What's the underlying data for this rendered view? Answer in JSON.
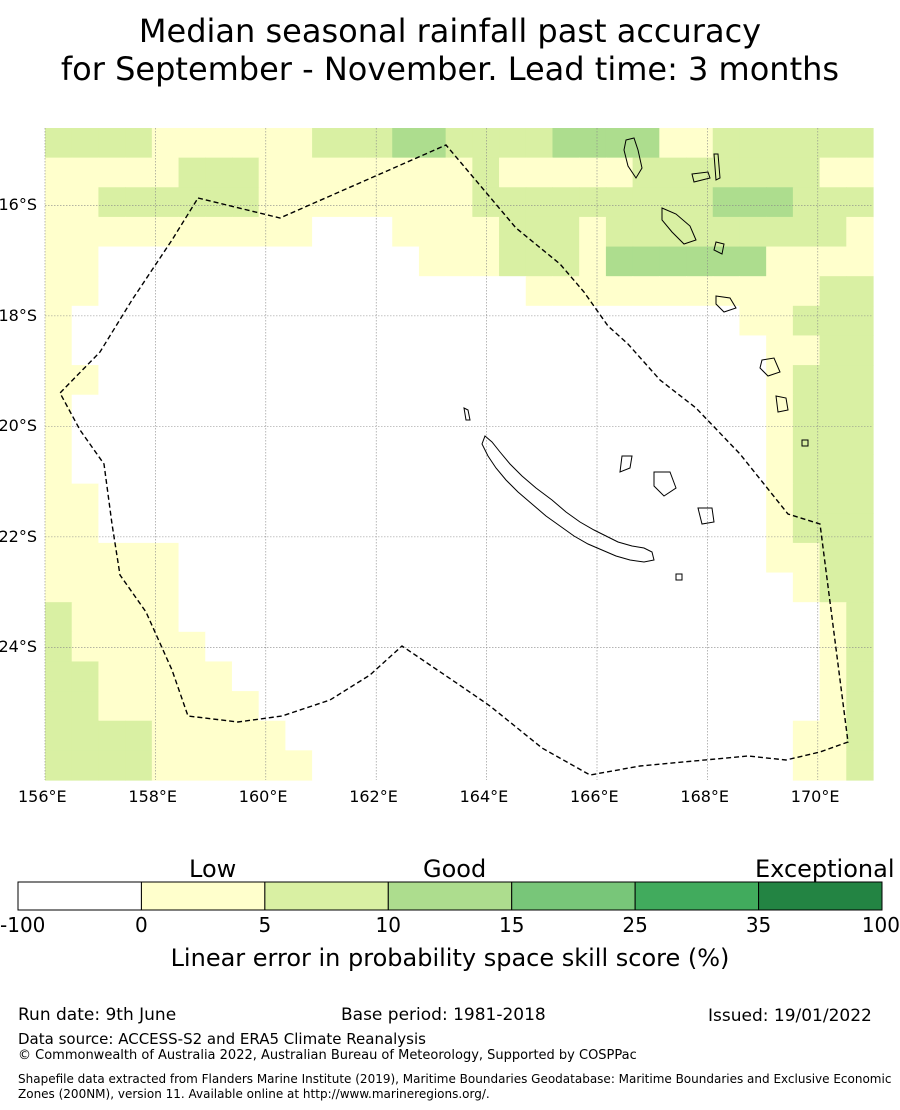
{
  "title_line1": "Median seasonal rainfall past accuracy",
  "title_line2": "for September - November. Lead time: 3 months",
  "map": {
    "lon_min": 156,
    "lon_max": 171,
    "lat_min": -26.4,
    "lat_max": -14.6,
    "lon_ticks": [
      "156°E",
      "158°E",
      "160°E",
      "162°E",
      "164°E",
      "166°E",
      "168°E",
      "170°E"
    ],
    "lat_ticks": [
      "16°S",
      "18°S",
      "20°S",
      "22°S",
      "24°S"
    ],
    "grid": [
      "2222111111222332222333311222222",
      "1111122211111111211111222222211",
      "1122222211111111222222222333222",
      "1111111111000111122212222222221",
      "1100000000000011122213333331111",
      "1100000000000000001111111111122",
      "1000000000000000000000000011222",
      "1000000000000000000000000001122",
      "1100000000000000000000000001222",
      "1000000000000000000000000001222",
      "1000000000000000000000000001222",
      "1000000000000000000000000001222",
      "1100000000000000000000000001222",
      "1100000000000000000000000001222",
      "1111100000000000000000000001122",
      "1111100000000000000000000000122",
      "2111100000000000000000000000012",
      "2111110000000000000000000000012",
      "2211111000000000000000000000012",
      "2211111100000000000000000000012",
      "2222111110000000000000000000112",
      "2222111111000000000000000000112"
    ]
  },
  "colorbar": {
    "categories": [
      "Low",
      "Good",
      "Exceptional"
    ],
    "colors": [
      "#ffffff",
      "#ffffcc",
      "#d9f0a3",
      "#addd8e",
      "#78c679",
      "#41ab5d",
      "#238443"
    ],
    "ticks": [
      "-100",
      "0",
      "5",
      "10",
      "15",
      "25",
      "35",
      "100"
    ],
    "title": "Linear error in probability space skill score (%)"
  },
  "footer": {
    "run_date": "Run date: 9th June",
    "base_period": "Base period: 1981-2018",
    "issued": "Issued: 19/01/2022",
    "data_source": "Data source: ACCESS-S2 and ERA5 Climate Reanalysis",
    "copyright": "© Commonwealth of Australia 2022, Australian Bureau of Meteorology, Supported by COSPPac",
    "shapefile": "Shapefile data extracted from Flanders Marine Institute (2019), Maritime Boundaries Geodatabase: Maritime Boundaries and Exclusive Economic Zones (200NM), version 11. Available online at http://www.marineregions.org/."
  }
}
